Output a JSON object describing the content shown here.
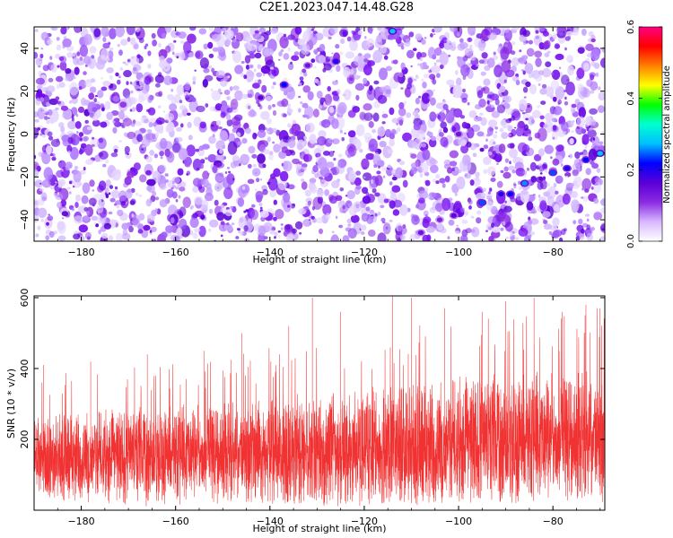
{
  "title": "C2E1.2023.047.14.48.G28",
  "chart_data": [
    {
      "type": "heatmap",
      "xlabel": "Height of straight line (km)",
      "ylabel": "Frequency (Hz)",
      "xlim": [
        -190,
        -69
      ],
      "ylim": [
        -50,
        50
      ],
      "xticks": [
        -180,
        -160,
        -140,
        -120,
        -100,
        -80
      ],
      "yticks": [
        -40,
        -20,
        0,
        20,
        40
      ],
      "colorbar": {
        "label": "Normalized spectral amplitude",
        "range": [
          0,
          0.6
        ],
        "ticks": [
          0.0,
          0.2,
          0.4,
          0.6
        ],
        "colormap": [
          "#ffffff",
          "#d7b8ff",
          "#8a2be2",
          "#5a00d6",
          "#0000ff",
          "#00bfff",
          "#00ffd0",
          "#00ff00",
          "#ffff00",
          "#ff8000",
          "#ff0000",
          "#ff0080"
        ]
      },
      "background": "dense speckle of values 0.0-0.12 (white to purple)",
      "features": [
        {
          "x": -114,
          "y": 48,
          "value": 0.28
        },
        {
          "x": -126,
          "y": 34,
          "value": 0.2
        },
        {
          "x": -132,
          "y": 32,
          "value": 0.14
        },
        {
          "x": -137,
          "y": 23,
          "value": 0.22
        },
        {
          "x": -142,
          "y": 17,
          "value": 0.16
        },
        {
          "x": -100,
          "y": 0,
          "value": 0.14
        },
        {
          "x": -70,
          "y": -9,
          "value": 0.28
        },
        {
          "x": -73,
          "y": -12,
          "value": 0.22
        },
        {
          "x": -77,
          "y": -16,
          "value": 0.2
        },
        {
          "x": -80,
          "y": -18,
          "value": 0.24
        },
        {
          "x": -86,
          "y": -23,
          "value": 0.26
        },
        {
          "x": -89,
          "y": -28,
          "value": 0.22
        },
        {
          "x": -91,
          "y": -28,
          "value": 0.2
        },
        {
          "x": -95,
          "y": -32,
          "value": 0.24
        },
        {
          "x": -101,
          "y": -38,
          "value": 0.16
        },
        {
          "x": -104,
          "y": -40,
          "value": 0.12
        },
        {
          "x": -108,
          "y": -46,
          "value": 0.14
        }
      ]
    },
    {
      "type": "line",
      "xlabel": "Height of straight line (km)",
      "ylabel": "SNR (10 * v/v)",
      "xlim": [
        -190,
        -69
      ],
      "ylim": [
        0,
        605
      ],
      "xticks": [
        -180,
        -160,
        -140,
        -120,
        -100,
        -80
      ],
      "yticks": [
        200,
        400,
        600
      ],
      "color": "#f03232",
      "envelope": {
        "x": [
          -190,
          -175,
          -160,
          -145,
          -130,
          -115,
          -100,
          -85,
          -70
        ],
        "baseline": [
          150,
          150,
          155,
          160,
          165,
          175,
          185,
          195,
          200
        ],
        "amplitude": [
          130,
          140,
          150,
          160,
          175,
          190,
          200,
          205,
          210
        ],
        "floor": [
          15,
          15,
          15,
          18,
          20,
          25,
          30,
          35,
          40
        ]
      },
      "peaks": [
        {
          "x": -188,
          "y": 410
        },
        {
          "x": -178,
          "y": 420
        },
        {
          "x": -166,
          "y": 440
        },
        {
          "x": -154,
          "y": 450
        },
        {
          "x": -146,
          "y": 500
        },
        {
          "x": -136,
          "y": 520
        },
        {
          "x": -131,
          "y": 600
        },
        {
          "x": -125,
          "y": 560
        },
        {
          "x": -114,
          "y": 605
        },
        {
          "x": -110,
          "y": 600
        },
        {
          "x": -103,
          "y": 570
        },
        {
          "x": -95,
          "y": 560
        },
        {
          "x": -90,
          "y": 590
        },
        {
          "x": -84,
          "y": 600
        },
        {
          "x": -78,
          "y": 560
        },
        {
          "x": -73,
          "y": 580
        },
        {
          "x": -70,
          "y": 570
        }
      ]
    }
  ]
}
